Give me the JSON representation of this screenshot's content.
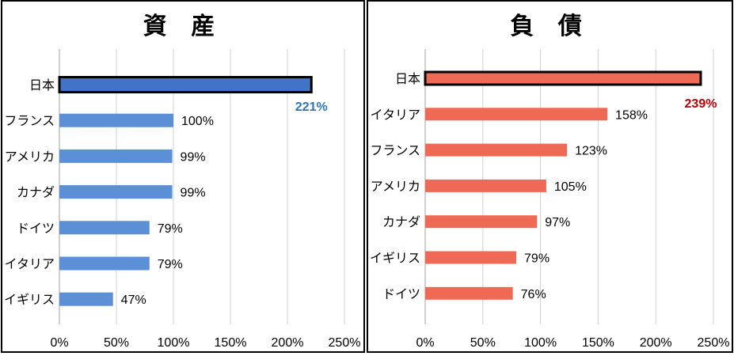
{
  "chart_data": [
    {
      "type": "bar",
      "orientation": "horizontal",
      "title": "資 産",
      "categories": [
        "日本",
        "フランス",
        "アメリカ",
        "カナダ",
        "ドイツ",
        "イタリア",
        "イギリス"
      ],
      "values": [
        221,
        100,
        99,
        99,
        79,
        79,
        47
      ],
      "value_labels": [
        "221%",
        "100%",
        "99%",
        "99%",
        "79%",
        "79%",
        "47%"
      ],
      "xlim": [
        0,
        250
      ],
      "xticks": [
        0,
        50,
        100,
        150,
        200,
        250
      ],
      "xtick_labels": [
        "0%",
        "50%",
        "100%",
        "150%",
        "200%",
        "250%"
      ],
      "grid": true,
      "colors": {
        "bar": "#5b8fd6",
        "highlight_bar": "#3f74c6",
        "highlight_label": "#2e75b6",
        "outline": "#000000"
      }
    },
    {
      "type": "bar",
      "orientation": "horizontal",
      "title": "負 債",
      "categories": [
        "日本",
        "イタリア",
        "フランス",
        "アメリカ",
        "カナダ",
        "イギリス",
        "ドイツ"
      ],
      "values": [
        239,
        158,
        123,
        105,
        97,
        79,
        76
      ],
      "value_labels": [
        "239%",
        "158%",
        "123%",
        "105%",
        "97%",
        "79%",
        "76%"
      ],
      "xlim": [
        0,
        250
      ],
      "xticks": [
        0,
        50,
        100,
        150,
        200,
        250
      ],
      "xtick_labels": [
        "0%",
        "50%",
        "100%",
        "150%",
        "200%",
        "250%"
      ],
      "grid": true,
      "colors": {
        "bar": "#ef6a55",
        "highlight_bar": "#ef6a55",
        "highlight_label": "#c00000",
        "outline": "#000000"
      }
    }
  ]
}
